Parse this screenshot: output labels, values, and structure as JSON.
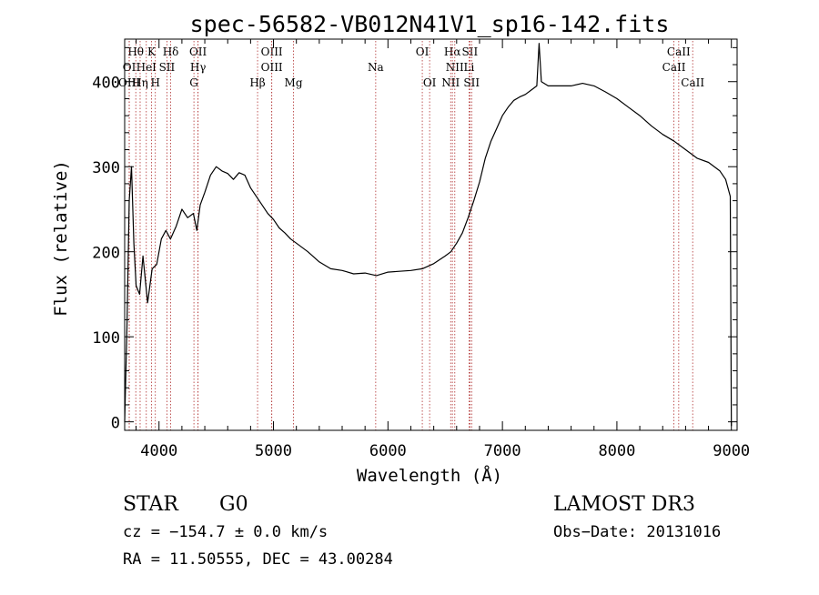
{
  "chart_data": {
    "type": "line",
    "title": "spec-56582-VB012N41V1_sp16-142.fits",
    "xlabel": "Wavelength (Å)",
    "ylabel": "Flux (relative)",
    "xlim": [
      3700,
      9050
    ],
    "ylim": [
      -10,
      450
    ],
    "x_ticks": [
      4000,
      5000,
      6000,
      7000,
      8000,
      9000
    ],
    "x_tick_labels": [
      "4000",
      "5000",
      "6000",
      "7000",
      "8000",
      "9000"
    ],
    "y_ticks": [
      0,
      100,
      200,
      300,
      400
    ],
    "y_tick_labels": [
      "0",
      "100",
      "200",
      "300",
      "400"
    ],
    "series": [
      {
        "name": "flux",
        "x": [
          3700,
          3720,
          3740,
          3760,
          3780,
          3800,
          3830,
          3860,
          3900,
          3940,
          3980,
          4020,
          4060,
          4100,
          4150,
          4200,
          4250,
          4300,
          4330,
          4360,
          4400,
          4450,
          4500,
          4550,
          4600,
          4650,
          4700,
          4750,
          4800,
          4850,
          4900,
          4950,
          5000,
          5050,
          5100,
          5150,
          5200,
          5300,
          5400,
          5500,
          5600,
          5700,
          5800,
          5900,
          6000,
          6100,
          6200,
          6300,
          6400,
          6500,
          6550,
          6600,
          6650,
          6700,
          6750,
          6800,
          6850,
          6900,
          6950,
          7000,
          7050,
          7100,
          7150,
          7200,
          7250,
          7300,
          7320,
          7340,
          7400,
          7500,
          7600,
          7700,
          7800,
          7900,
          8000,
          8100,
          8200,
          8300,
          8400,
          8500,
          8600,
          8700,
          8800,
          8900,
          8950,
          8990,
          9000
        ],
        "y": [
          0,
          110,
          260,
          300,
          210,
          160,
          150,
          195,
          140,
          180,
          185,
          215,
          225,
          215,
          230,
          250,
          240,
          245,
          225,
          255,
          270,
          290,
          300,
          295,
          292,
          285,
          293,
          290,
          275,
          265,
          255,
          245,
          238,
          228,
          222,
          215,
          210,
          200,
          188,
          180,
          178,
          174,
          175,
          172,
          176,
          177,
          178,
          180,
          186,
          195,
          200,
          210,
          222,
          240,
          260,
          282,
          310,
          330,
          345,
          360,
          370,
          378,
          382,
          385,
          390,
          395,
          445,
          400,
          395,
          395,
          395,
          398,
          395,
          388,
          380,
          370,
          360,
          348,
          338,
          330,
          320,
          310,
          305,
          295,
          285,
          265,
          -5
        ]
      }
    ],
    "line_markers": [
      {
        "label": "Hθ",
        "x": 3797,
        "row": 1
      },
      {
        "label": "K",
        "x": 3934,
        "row": 1
      },
      {
        "label": "Hδ",
        "x": 4102,
        "row": 1
      },
      {
        "label": "OII",
        "x": 4341,
        "row": 1
      },
      {
        "label": "OIII",
        "x": 4985,
        "row": 1
      },
      {
        "label": "OI",
        "x": 6300,
        "row": 1
      },
      {
        "label": "Hα",
        "x": 6563,
        "row": 1
      },
      {
        "label": "SII",
        "x": 6716,
        "row": 1
      },
      {
        "label": "CaII",
        "x": 8540,
        "row": 1
      },
      {
        "label": "OI",
        "x": 3740,
        "row": 2
      },
      {
        "label": "HeI",
        "x": 3889,
        "row": 2
      },
      {
        "label": "SII",
        "x": 4069,
        "row": 2
      },
      {
        "label": "Hγ",
        "x": 4341,
        "row": 2
      },
      {
        "label": "OIII",
        "x": 4985,
        "row": 2
      },
      {
        "label": "Na",
        "x": 5893,
        "row": 2
      },
      {
        "label": "NII",
        "x": 6584,
        "row": 2
      },
      {
        "label": "Li",
        "x": 6708,
        "row": 2
      },
      {
        "label": "CaII",
        "x": 8498,
        "row": 2
      },
      {
        "label": "OIII",
        "x": 3740,
        "row": 3
      },
      {
        "label": "Hη",
        "x": 3835,
        "row": 3
      },
      {
        "label": "H",
        "x": 3968,
        "row": 3
      },
      {
        "label": "G",
        "x": 4305,
        "row": 3
      },
      {
        "label": "Hβ",
        "x": 4861,
        "row": 3
      },
      {
        "label": "Mg",
        "x": 5175,
        "row": 3
      },
      {
        "label": "OI",
        "x": 6364,
        "row": 3
      },
      {
        "label": "NII",
        "x": 6548,
        "row": 3
      },
      {
        "label": "SII",
        "x": 6731,
        "row": 3
      },
      {
        "label": "CaII",
        "x": 8662,
        "row": 3
      }
    ]
  },
  "info": {
    "class": "STAR",
    "subclass": "G0",
    "survey": "LAMOST DR3",
    "cz": "cz = −154.7 ± 0.0 km/s",
    "obs_date": "Obs−Date: 20131016",
    "radec": "RA =  11.50555, DEC =  43.00284"
  }
}
